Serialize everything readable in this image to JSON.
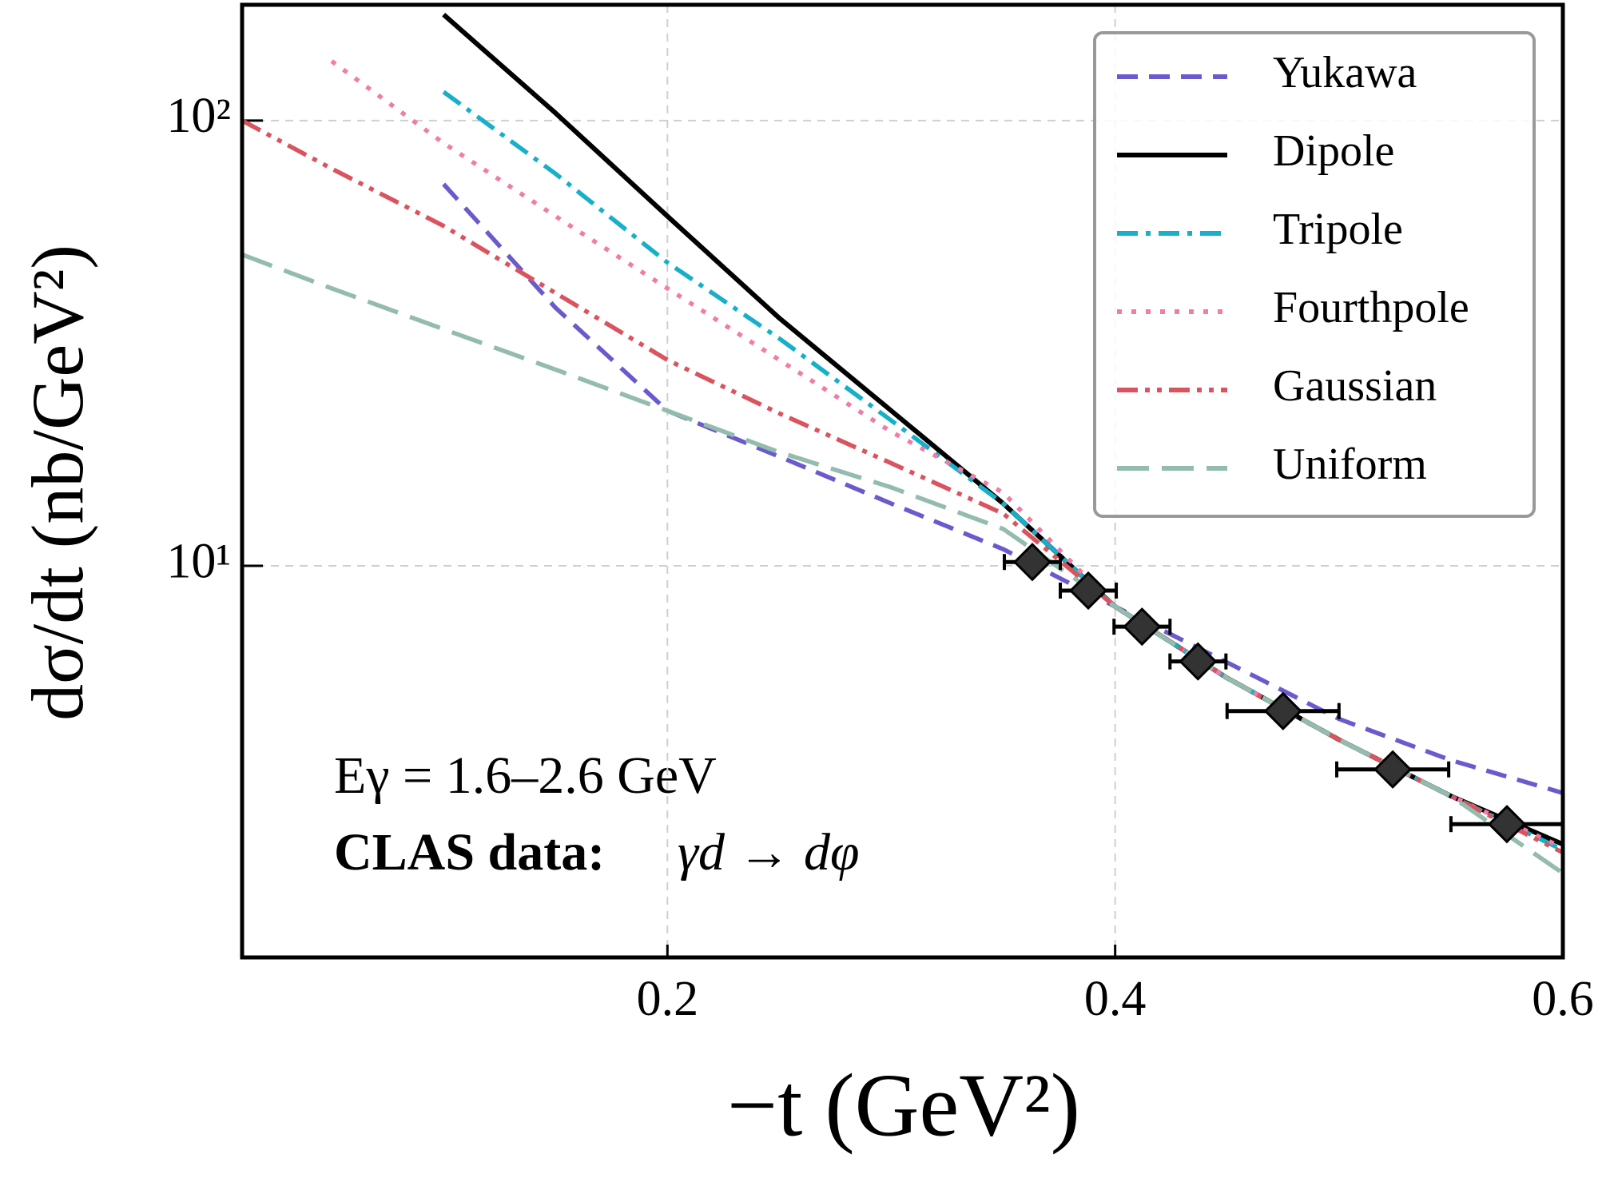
{
  "chart_data": {
    "type": "line",
    "xlabel": "−t (GeV²)",
    "ylabel": "dσ/dt (nb/GeV²)",
    "annotations": [
      "Eγ = 1.6–2.6 GeV",
      "CLAS data:",
      "γd → dφ"
    ],
    "x": [
      0.01,
      0.05,
      0.1,
      0.15,
      0.2,
      0.25,
      0.3,
      0.35,
      0.4,
      0.45,
      0.5,
      0.55,
      0.6
    ],
    "series": [
      {
        "name": "Yukawa",
        "color": "#6a5acd",
        "dash": "dashed",
        "values": [
          null,
          null,
          72,
          38,
          22.3,
          17.6,
          13.8,
          10.9,
          8.1,
          6.07,
          4.53,
          3.66,
          3.09
        ]
      },
      {
        "name": "Dipole",
        "color": "#000000",
        "dash": "solid",
        "values": [
          null,
          null,
          173,
          104,
          61,
          36,
          22.3,
          13.8,
          8.1,
          5.6,
          4.07,
          3.04,
          2.37
        ]
      },
      {
        "name": "Tripole",
        "color": "#17b0c8",
        "dash": "dashdot",
        "values": [
          null,
          null,
          116,
          76,
          48,
          32.4,
          21.2,
          13.8,
          8.1,
          5.6,
          4.07,
          3.04,
          2.3
        ]
      },
      {
        "name": "Fourthpole",
        "color": "#f27ba7",
        "dash": "dotted",
        "values": [
          null,
          136,
          89,
          61,
          42,
          29,
          20,
          14.6,
          8.1,
          5.6,
          4.07,
          3.04,
          2.33
        ]
      },
      {
        "name": "Gaussian",
        "color": "#d9545f",
        "dash": "dashdotdot",
        "values": [
          100,
          78,
          58,
          41,
          29,
          22,
          17,
          13.1,
          8.1,
          5.6,
          4.07,
          3.04,
          2.27
        ]
      },
      {
        "name": "Uniform",
        "color": "#93bcae",
        "dash": "longdash",
        "values": [
          50,
          42,
          34,
          27.6,
          22.3,
          18,
          15,
          12.1,
          8.1,
          5.6,
          4.07,
          3.04,
          2.04
        ]
      }
    ],
    "data_points": {
      "color": "#333333",
      "x": [
        0.363,
        0.388,
        0.412,
        0.437,
        0.475,
        0.524,
        0.575
      ],
      "values": [
        10.2,
        8.8,
        7.3,
        6.1,
        4.72,
        3.49,
        2.63
      ],
      "xerr": [
        0.0125,
        0.0125,
        0.0125,
        0.0125,
        0.025,
        0.025,
        0.025
      ],
      "yerr": [
        0.6,
        0.5,
        0.4,
        0.35,
        0.3,
        0.2,
        0.2
      ]
    },
    "xlim": [
      0.01,
      0.6
    ],
    "ylim": [
      1.32,
      182
    ],
    "xticks": [
      0.2,
      0.4,
      0.6
    ],
    "yticks": [
      {
        "value": 10,
        "label": "10¹"
      },
      {
        "value": 100,
        "label": "10²"
      }
    ],
    "yscale": "log",
    "grid": true,
    "legend": "upper right"
  }
}
